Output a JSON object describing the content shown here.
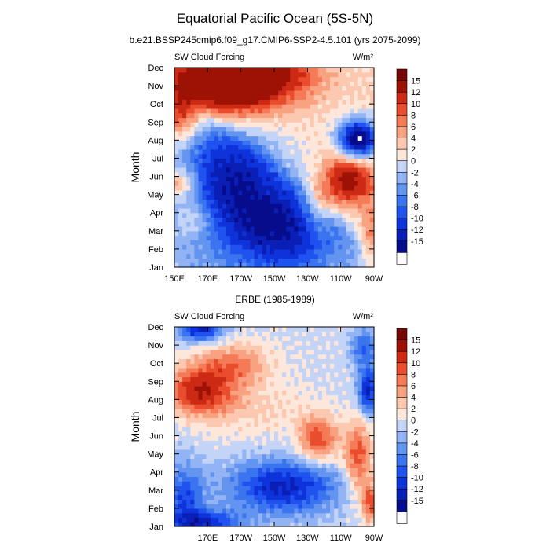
{
  "title": "Equatorial Pacific Ocean (5S-5N)",
  "chart_data": [
    {
      "type": "heatmap",
      "subtitle": "b.e21.BSSP245cmip6.f09_g17.CMIP6-SSP2-4.5.101 (yrs 2075-2099)",
      "left_label": "SW Cloud Forcing",
      "units": "W/m²",
      "ylabel": "Month",
      "xticks": [
        "150E",
        "170E",
        "170W",
        "150W",
        "130W",
        "110W",
        "90W"
      ],
      "yticks": [
        "Jan",
        "Feb",
        "Mar",
        "Apr",
        "May",
        "Jun",
        "Jul",
        "Aug",
        "Sep",
        "Oct",
        "Nov",
        "Dec"
      ],
      "xlim": [
        "150E",
        "90W"
      ],
      "ylim": [
        "Jan",
        "Dec"
      ]
    },
    {
      "type": "heatmap",
      "subtitle": "ERBE (1985-1989)",
      "left_label": "SW Cloud Forcing",
      "units": "W/m²",
      "ylabel": "Month",
      "xticks": [
        "",
        "170E",
        "170W",
        "150W",
        "130W",
        "110W",
        "90W"
      ],
      "yticks": [
        "Jan",
        "Feb",
        "Mar",
        "Apr",
        "May",
        "Jun",
        "Jul",
        "Aug",
        "Sep",
        "Oct",
        "Nov",
        "Dec"
      ],
      "xlim": [
        "150E",
        "90W"
      ],
      "ylim": [
        "Jan",
        "Dec"
      ]
    }
  ],
  "colorbar": {
    "labels": [
      "15",
      "12",
      "10",
      "8",
      "6",
      "4",
      "2",
      "0",
      "-2",
      "-4",
      "-6",
      "-8",
      "-10",
      "-12",
      "-15"
    ],
    "colors": [
      "#fbfcff",
      "#070c8c",
      "#0a1fb6",
      "#0e33db",
      "#1f52ef",
      "#3b74ef",
      "#6394f0",
      "#93b4f4",
      "#c3d4f7",
      "#fde7db",
      "#fcc8b0",
      "#f9a281",
      "#f57a57",
      "#e94d2d",
      "#cc2a14",
      "#9e1206",
      "#750805"
    ]
  }
}
